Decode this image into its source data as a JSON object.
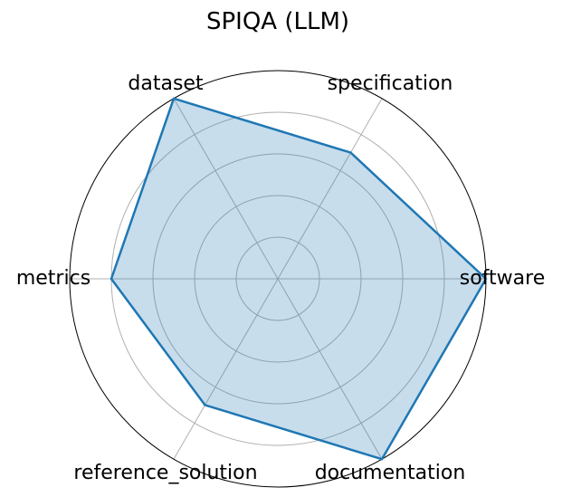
{
  "chart_data": {
    "type": "radar",
    "title": "SPIQA (LLM)",
    "categories": [
      "software",
      "specification",
      "dataset",
      "metrics",
      "reference_solution",
      "documentation"
    ],
    "series": [
      {
        "values": [
          1.0,
          0.7,
          1.0,
          0.8,
          0.7,
          1.0
        ]
      }
    ],
    "rlim": [
      0,
      1
    ],
    "grid": true,
    "line_color": "#1f77b4",
    "fill_color": "#1f77b4",
    "fill_opacity": 0.25,
    "grid_color": "#b0b0b0"
  }
}
